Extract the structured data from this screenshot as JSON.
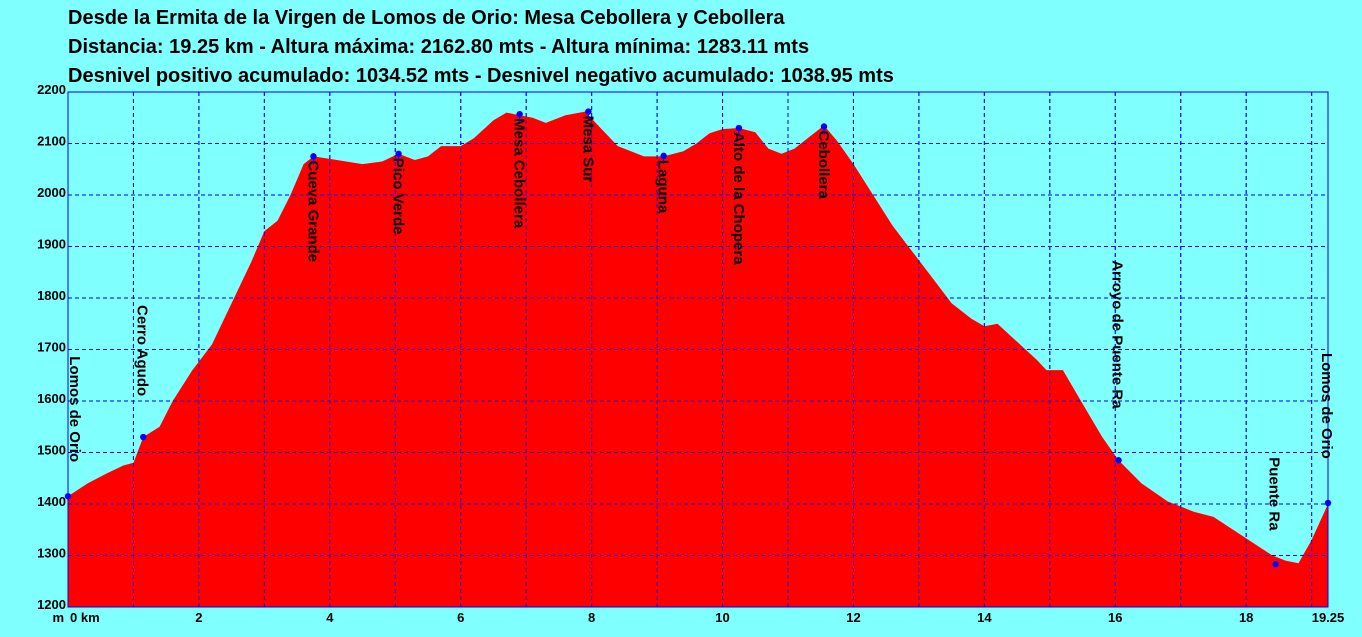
{
  "header": {
    "line1": "Desde la Ermita de la Virgen de Lomos de Orio: Mesa Cebollera y Cebollera",
    "line2": "Distancia: 19.25 km - Altura máxima: 2162.80 mts - Altura mínima: 1283.11 mts",
    "line3": "Desnivel positivo acumulado: 1034.52 mts - Desnivel negativo acumulado: 1038.95 mts"
  },
  "chart_data": {
    "type": "area",
    "title": "Desde la Ermita de la Virgen de Lomos de Orio: Mesa Cebollera y Cebollera",
    "xlabel": "km",
    "ylabel": "m",
    "xlim": [
      0,
      19.25
    ],
    "ylim": [
      1200,
      2200
    ],
    "grid": true,
    "x_ticks": [
      {
        "value": 0,
        "label": "0 km"
      },
      {
        "value": 2,
        "label": "2"
      },
      {
        "value": 4,
        "label": "4"
      },
      {
        "value": 6,
        "label": "6"
      },
      {
        "value": 8,
        "label": "8"
      },
      {
        "value": 10,
        "label": "10"
      },
      {
        "value": 12,
        "label": "12"
      },
      {
        "value": 14,
        "label": "14"
      },
      {
        "value": 16,
        "label": "16"
      },
      {
        "value": 18,
        "label": "18"
      },
      {
        "value": 19.25,
        "label": "19.25"
      }
    ],
    "x_grid": [
      0,
      1,
      2,
      3,
      4,
      5,
      6,
      7,
      8,
      9,
      10,
      11,
      12,
      13,
      14,
      15,
      16,
      17,
      18,
      19
    ],
    "y_ticks": [
      1200,
      1300,
      1400,
      1500,
      1600,
      1700,
      1800,
      1900,
      2000,
      2100,
      2200
    ],
    "y_unit_label": "m",
    "colors": {
      "fill": "#ff0000",
      "grid": "#0000ff",
      "marker": "#0000ff",
      "background": "#80ffff"
    },
    "profile": {
      "x": [
        0,
        0.3,
        0.6,
        0.85,
        1.0,
        1.15,
        1.4,
        1.6,
        1.9,
        2.2,
        2.5,
        2.8,
        3.0,
        3.2,
        3.4,
        3.6,
        3.75,
        4.0,
        4.5,
        4.8,
        5.05,
        5.3,
        5.5,
        5.7,
        6.0,
        6.2,
        6.5,
        6.7,
        6.9,
        7.1,
        7.3,
        7.6,
        7.9,
        8.1,
        8.4,
        8.8,
        9.1,
        9.4,
        9.6,
        9.8,
        10.0,
        10.25,
        10.5,
        10.7,
        10.9,
        11.1,
        11.3,
        11.55,
        11.75,
        12.0,
        12.3,
        12.6,
        12.9,
        13.2,
        13.5,
        13.8,
        14.0,
        14.2,
        14.5,
        14.8,
        14.95,
        15.2,
        15.5,
        15.8,
        16.05,
        16.4,
        16.8,
        17.2,
        17.5,
        17.8,
        18.1,
        18.4,
        18.6,
        18.8,
        19.0,
        19.25
      ],
      "y": [
        1415,
        1440,
        1460,
        1475,
        1480,
        1530,
        1550,
        1600,
        1660,
        1710,
        1790,
        1870,
        1930,
        1950,
        2000,
        2060,
        2075,
        2070,
        2060,
        2065,
        2080,
        2068,
        2075,
        2095,
        2095,
        2110,
        2145,
        2160,
        2155,
        2150,
        2140,
        2155,
        2162,
        2135,
        2095,
        2075,
        2075,
        2085,
        2100,
        2120,
        2128,
        2130,
        2122,
        2090,
        2080,
        2090,
        2110,
        2135,
        2105,
        2060,
        2000,
        1940,
        1890,
        1840,
        1790,
        1760,
        1745,
        1750,
        1715,
        1680,
        1660,
        1660,
        1595,
        1530,
        1485,
        1440,
        1405,
        1385,
        1375,
        1350,
        1325,
        1300,
        1290,
        1285,
        1330,
        1400
      ]
    },
    "waypoints": [
      {
        "name": "Lomos de Orio",
        "x": 0.0,
        "y": 1415
      },
      {
        "name": "Cerro Agudo",
        "x": 1.15,
        "y": 1530
      },
      {
        "name": "Cueva Grande",
        "x": 3.75,
        "y": 2075
      },
      {
        "name": "Pico Verde",
        "x": 5.05,
        "y": 2080
      },
      {
        "name": "Mesa Cebollera",
        "x": 6.9,
        "y": 2157
      },
      {
        "name": "Mesa Sur",
        "x": 7.95,
        "y": 2162
      },
      {
        "name": "Laguna",
        "x": 9.1,
        "y": 2076
      },
      {
        "name": "Alto de la Chopera",
        "x": 10.25,
        "y": 2130
      },
      {
        "name": "Cebollera",
        "x": 11.55,
        "y": 2133
      },
      {
        "name": "Arroyo de Puente Ra",
        "x": 16.05,
        "y": 1485
      },
      {
        "name": "Puente Ra",
        "x": 18.45,
        "y": 1283
      },
      {
        "name": "Lomos de Orio",
        "x": 19.25,
        "y": 1402
      }
    ]
  }
}
